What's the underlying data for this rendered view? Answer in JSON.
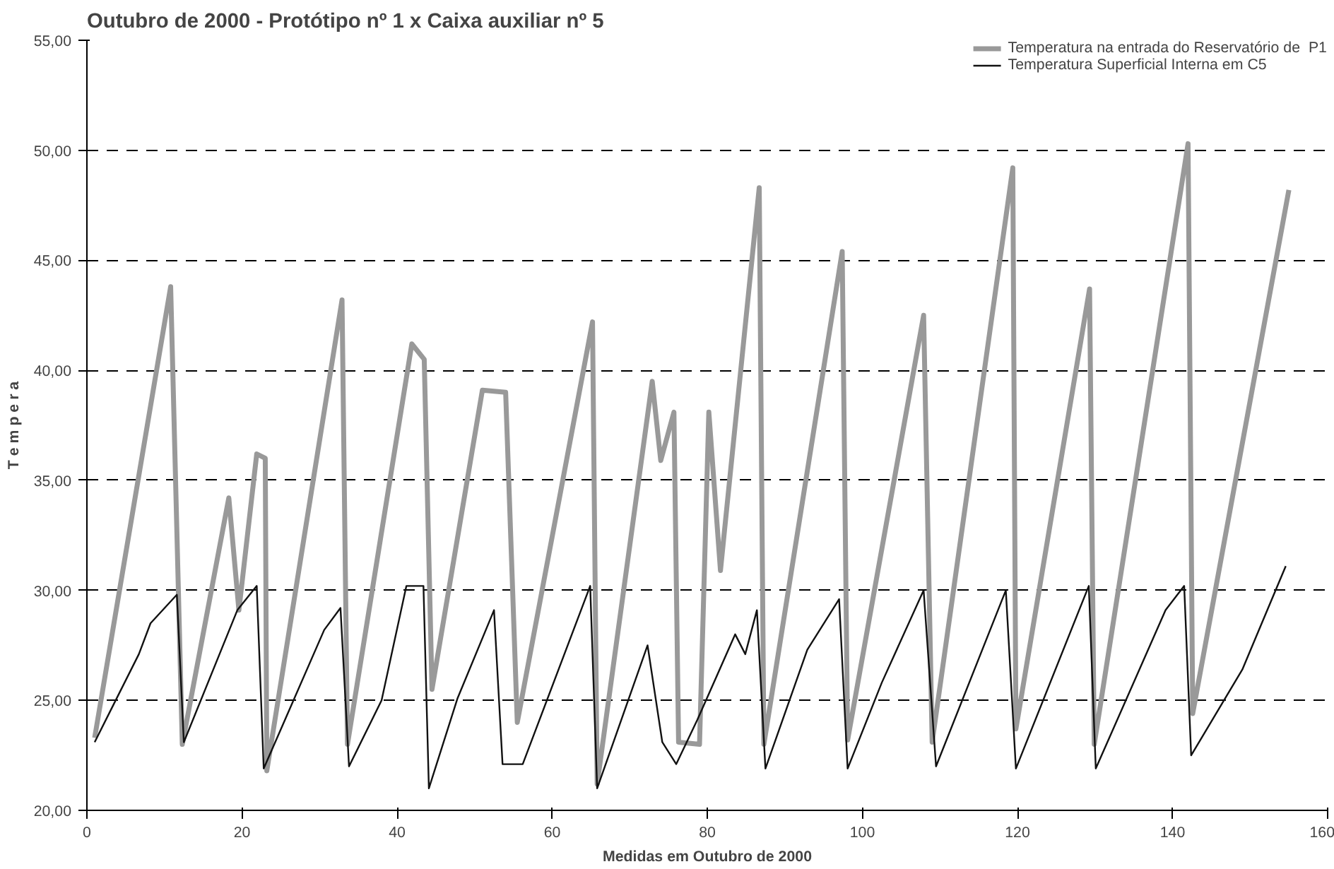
{
  "chart_data": {
    "type": "line",
    "title": "Outubro de 2000  - Protótipo nº 1 x Caixa auxiliar nº 5",
    "xlabel": "Medidas em Outubro de 2000",
    "ylabel": "T e m p e r a",
    "xlim": [
      0,
      160
    ],
    "xticks": [
      0,
      20,
      40,
      60,
      80,
      100,
      120,
      140,
      160
    ],
    "ylim": [
      20,
      55
    ],
    "yticks": [
      {
        "value": 20,
        "label": "20,00"
      },
      {
        "value": 25,
        "label": "25,00"
      },
      {
        "value": 30,
        "label": "30,00"
      },
      {
        "value": 35,
        "label": "35,00"
      },
      {
        "value": 40,
        "label": "40,00"
      },
      {
        "value": 45,
        "label": "45,00"
      },
      {
        "value": 50,
        "label": "50,00"
      },
      {
        "value": 55,
        "label": "55,00"
      }
    ],
    "grid": "y",
    "legend": "top right",
    "marker": "none",
    "line_style": "solid",
    "series": [
      {
        "name": "Temperatura na entrada do Reservatório de  P1",
        "color": "#999999",
        "x": [
          1,
          10.8,
          12.3,
          18.3,
          19.6,
          21.9,
          23,
          23.2,
          32.9,
          33.6,
          41.9,
          43.5,
          44.5,
          51,
          54,
          55.5,
          65.2,
          65.8,
          72.9,
          74,
          75.7,
          76.3,
          79,
          80.2,
          81.7,
          86.7,
          87.3,
          97.4,
          98.1,
          107.9,
          109,
          119.4,
          119.8,
          129.3,
          129.9,
          142,
          142.6,
          155
        ],
        "values": [
          23.3,
          43.8,
          23,
          34.2,
          29.1,
          36.2,
          36,
          21.8,
          43.2,
          23,
          41.2,
          40.5,
          25.5,
          39.1,
          39,
          24,
          42.2,
          21.2,
          39.5,
          35.9,
          38.1,
          23.1,
          23,
          38.1,
          30.9,
          48.3,
          23,
          45.4,
          23.2,
          42.5,
          23.1,
          49.2,
          23.7,
          43.7,
          23,
          50.3,
          24.4,
          48.2
        ]
      },
      {
        "name": "Temperatura Superficial Interna em C5",
        "color": "#111111",
        "x": [
          1,
          6.7,
          8.2,
          11.6,
          12.5,
          19.4,
          21.9,
          22.8,
          30.6,
          32.7,
          33.8,
          38,
          41.2,
          43.4,
          44.1,
          47.8,
          52.5,
          53.6,
          56.2,
          64.9,
          65.8,
          72.3,
          74.2,
          76,
          78.7,
          83.6,
          84.9,
          86.4,
          87.5,
          92.9,
          97,
          98.1,
          102.5,
          107.9,
          109.5,
          118.5,
          119.8,
          129.2,
          130.1,
          139.1,
          141.5,
          142.4,
          149,
          154.6
        ],
        "values": [
          23.1,
          27.1,
          28.5,
          29.8,
          23.1,
          29.1,
          30.2,
          21.9,
          28.2,
          29.2,
          22,
          25,
          30.2,
          30.2,
          21,
          25.1,
          29.1,
          22.1,
          22.1,
          30.2,
          21,
          27.5,
          23.1,
          22.1,
          24.1,
          28,
          27.1,
          29.1,
          21.9,
          27.3,
          29.6,
          21.9,
          25.8,
          30,
          22,
          30,
          21.9,
          30.2,
          21.9,
          29.1,
          30.2,
          22.5,
          26.4,
          31.1
        ]
      }
    ]
  }
}
